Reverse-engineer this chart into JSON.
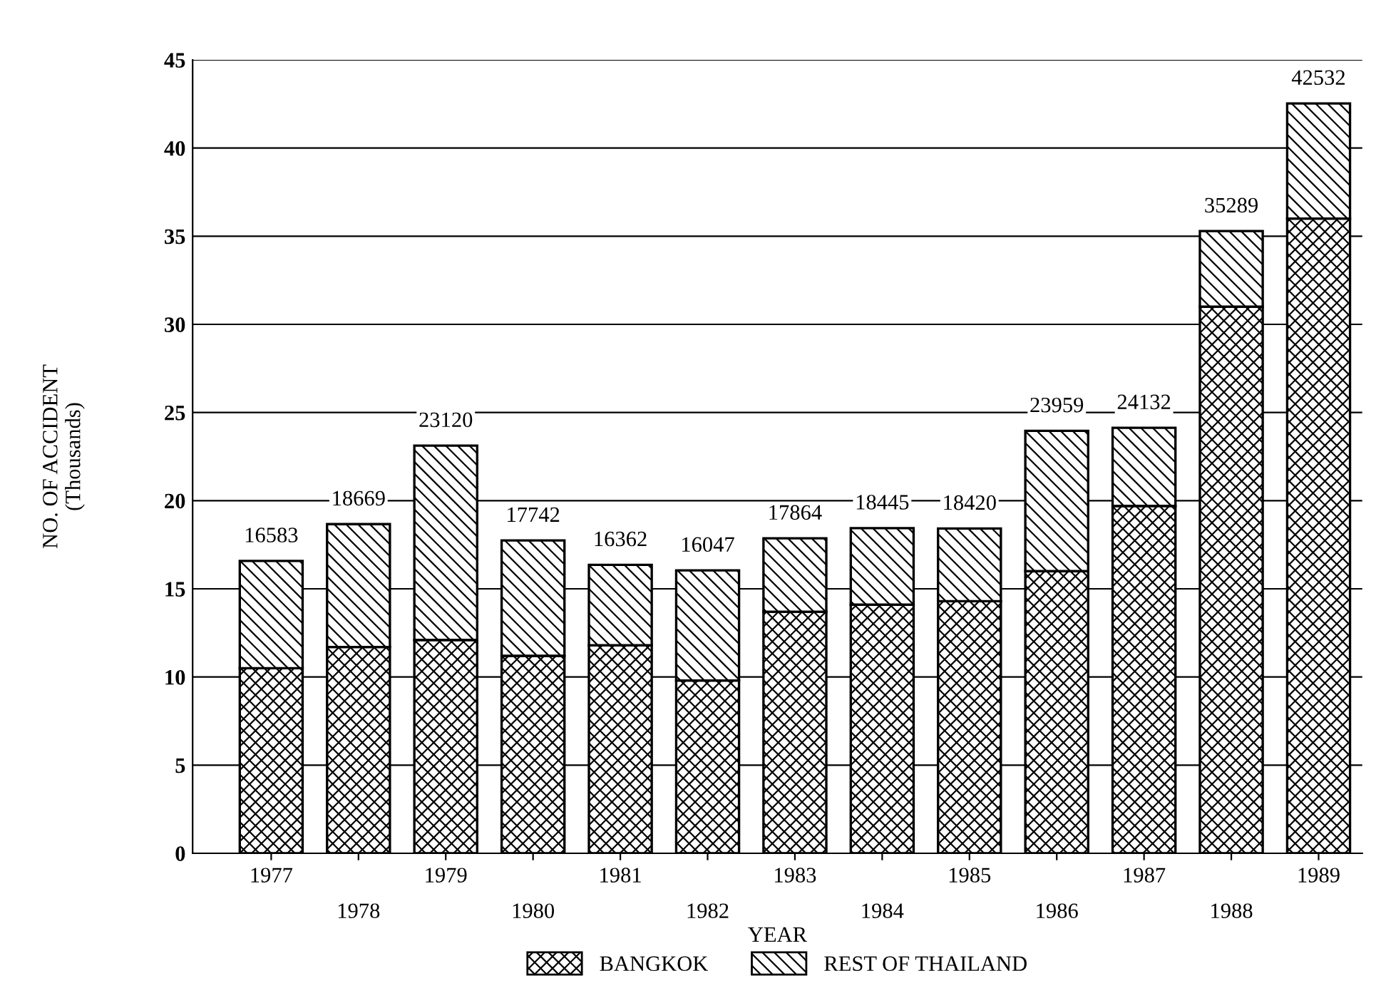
{
  "chart_data": {
    "type": "bar",
    "stacked": true,
    "xlabel": "YEAR",
    "ylabel": "NO. OF ACCIDENT\n(Thousands)",
    "categories": [
      "1977",
      "1978",
      "1979",
      "1980",
      "1981",
      "1982",
      "1983",
      "1984",
      "1985",
      "1986",
      "1987",
      "1988",
      "1989"
    ],
    "series": [
      {
        "name": "BANGKOK",
        "color": "#000000",
        "values": [
          10.5,
          11.7,
          12.1,
          11.2,
          11.8,
          9.8,
          13.7,
          14.1,
          14.3,
          16.0,
          19.7,
          31.0,
          36.0
        ]
      },
      {
        "name": "REST OF THAILAND",
        "color": "#000000",
        "values": [
          6.083,
          6.969,
          11.02,
          6.542,
          4.562,
          6.247,
          4.164,
          4.345,
          4.12,
          7.959,
          4.432,
          4.289,
          6.532
        ]
      }
    ],
    "totals": [
      "16583",
      "18669",
      "23120",
      "17742",
      "16362",
      "16047",
      "17864",
      "18445",
      "18420",
      "23959",
      "24132",
      "35289",
      "42532"
    ],
    "ylim": [
      0,
      45
    ],
    "yticks": [
      0,
      5,
      10,
      15,
      20,
      25,
      30,
      35,
      40,
      45
    ],
    "grid": "y",
    "legend": "bottom"
  }
}
